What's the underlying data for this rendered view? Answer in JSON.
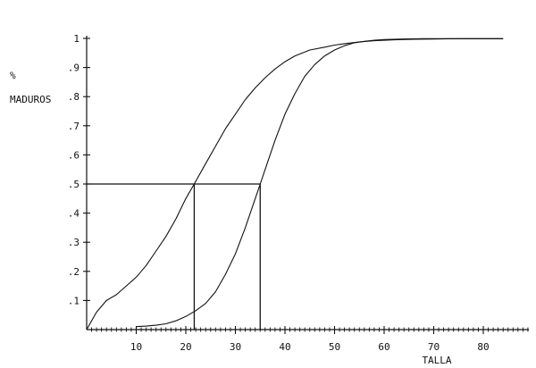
{
  "chart_data": {
    "type": "line",
    "xlabel": "TALLA",
    "ylabel_lines": [
      "%",
      "MADUROS"
    ],
    "xlim": [
      0,
      88
    ],
    "ylim": [
      0,
      1
    ],
    "x_ticks": [
      10,
      20,
      30,
      40,
      50,
      60,
      70,
      80
    ],
    "x_tick_labels": [
      "10",
      "20",
      "30",
      "40",
      "50",
      "60",
      "70",
      "80"
    ],
    "y_ticks": [
      0.1,
      0.2,
      0.3,
      0.4,
      0.5,
      0.6,
      0.7,
      0.8,
      0.9,
      1
    ],
    "y_tick_labels": [
      ".1",
      ".2",
      ".3",
      ".4",
      ".5",
      ".6",
      ".7",
      ".8",
      ".9",
      "1"
    ],
    "x_minor_step": 1,
    "grid": false,
    "legend": "none",
    "series": [
      {
        "x": [
          0,
          2,
          4,
          6,
          8,
          10,
          12,
          14,
          16,
          18,
          20,
          21.7,
          24,
          26,
          28,
          30,
          32,
          34,
          36,
          38,
          40,
          42,
          45,
          48,
          50,
          52,
          55,
          58,
          62,
          66,
          70,
          75,
          80,
          84
        ],
        "y": [
          0.0,
          0.06,
          0.1,
          0.12,
          0.15,
          0.18,
          0.22,
          0.27,
          0.32,
          0.38,
          0.45,
          0.5,
          0.57,
          0.63,
          0.69,
          0.74,
          0.79,
          0.83,
          0.865,
          0.895,
          0.92,
          0.94,
          0.96,
          0.97,
          0.977,
          0.982,
          0.988,
          0.992,
          0.995,
          0.997,
          0.998,
          0.999,
          0.999,
          0.999
        ]
      },
      {
        "x": [
          10,
          12,
          14,
          16,
          18,
          20,
          22,
          24,
          26,
          28,
          30,
          32,
          34,
          35,
          36,
          38,
          40,
          42,
          44,
          46,
          48,
          50,
          52,
          54,
          56,
          58,
          60,
          64,
          68,
          72,
          76,
          80,
          84
        ],
        "y": [
          0.01,
          0.012,
          0.015,
          0.02,
          0.03,
          0.045,
          0.065,
          0.09,
          0.13,
          0.19,
          0.26,
          0.35,
          0.45,
          0.5,
          0.55,
          0.65,
          0.74,
          0.81,
          0.87,
          0.91,
          0.94,
          0.96,
          0.975,
          0.985,
          0.99,
          0.994,
          0.996,
          0.998,
          0.999,
          0.999,
          0.999,
          0.999,
          0.999
        ]
      }
    ],
    "reference_lines": [
      {
        "from": [
          0,
          0.5
        ],
        "to": [
          35,
          0.5
        ]
      },
      {
        "from": [
          21.7,
          0.5
        ],
        "to": [
          21.7,
          0
        ]
      },
      {
        "from": [
          35,
          0.5
        ],
        "to": [
          35,
          0
        ]
      }
    ],
    "colors": {
      "ink": "#111111",
      "background": "#ffffff"
    }
  }
}
